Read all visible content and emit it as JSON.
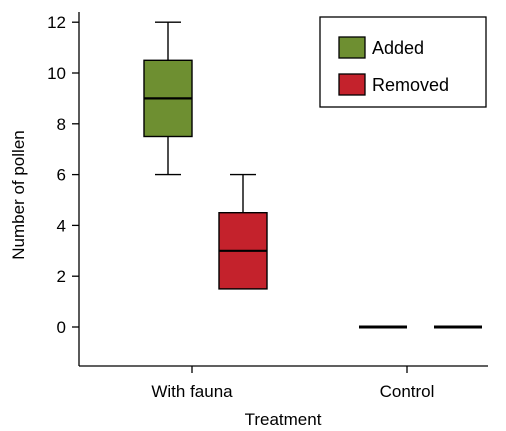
{
  "chart_data": {
    "type": "box",
    "xlabel": "Treatment",
    "ylabel": "Number of pollen",
    "categories": [
      "With fauna",
      "Control"
    ],
    "yticks": [
      0,
      2,
      4,
      6,
      8,
      10,
      12
    ],
    "ylim": [
      -1.3,
      12.5
    ],
    "grid": false,
    "legend": {
      "position": "top-right"
    },
    "series": [
      {
        "name": "Added",
        "color": "#6e8f31",
        "boxes": [
          {
            "category": "With fauna",
            "min": 6,
            "q1": 7.5,
            "median": 9,
            "q3": 10.5,
            "max": 12
          },
          {
            "category": "Control",
            "min": 0,
            "q1": 0,
            "median": 0,
            "q3": 0,
            "max": 0
          }
        ]
      },
      {
        "name": "Removed",
        "color": "#c4222c",
        "boxes": [
          {
            "category": "With fauna",
            "min": 1.5,
            "q1": 1.5,
            "median": 3,
            "q3": 4.5,
            "max": 6
          },
          {
            "category": "Control",
            "min": 0,
            "q1": 0,
            "median": 0,
            "q3": 0,
            "max": 0
          }
        ]
      }
    ]
  }
}
